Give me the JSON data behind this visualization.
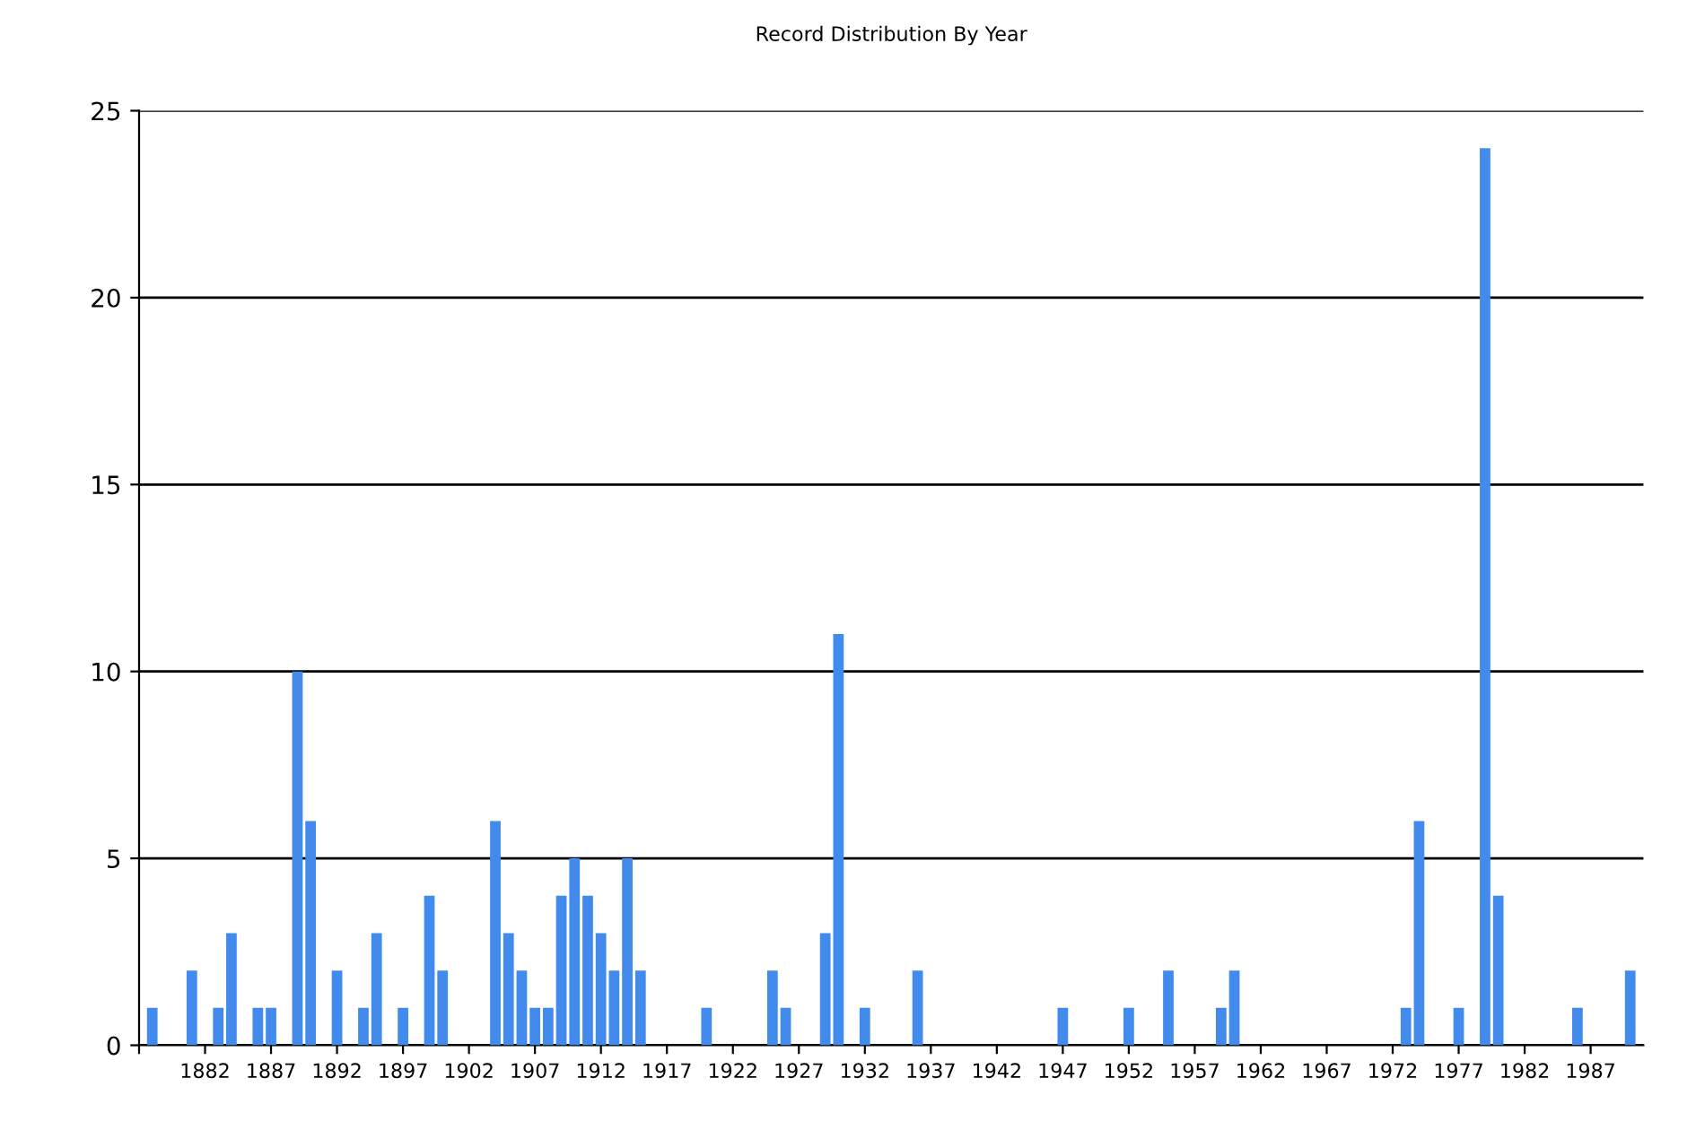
{
  "chart_data": {
    "type": "bar",
    "title": "Record Distribution By Year",
    "x": [
      1878,
      1881,
      1883,
      1884,
      1886,
      1887,
      1889,
      1890,
      1892,
      1894,
      1895,
      1897,
      1899,
      1900,
      1904,
      1905,
      1906,
      1907,
      1908,
      1909,
      1910,
      1911,
      1912,
      1913,
      1914,
      1915,
      1920,
      1925,
      1926,
      1929,
      1930,
      1932,
      1936,
      1947,
      1952,
      1955,
      1959,
      1960,
      1973,
      1974,
      1977,
      1979,
      1980,
      1986,
      1990
    ],
    "values": [
      1,
      2,
      1,
      3,
      1,
      1,
      10,
      6,
      2,
      1,
      3,
      1,
      4,
      2,
      6,
      3,
      2,
      1,
      1,
      4,
      5,
      4,
      3,
      2,
      5,
      2,
      1,
      2,
      1,
      3,
      11,
      1,
      2,
      1,
      1,
      2,
      1,
      2,
      1,
      6,
      1,
      24,
      4,
      1,
      2
    ],
    "color": "#428bec",
    "xlim": [
      1877,
      1991
    ],
    "xticks": [
      {
        "value": 1877,
        "label": null
      },
      1882,
      1887,
      1892,
      1897,
      1902,
      1907,
      1912,
      1917,
      1922,
      1927,
      1932,
      1937,
      1942,
      1947,
      1952,
      1957,
      1962,
      1967,
      1972,
      1977,
      1982,
      1987
    ],
    "ylim": [
      0,
      25
    ],
    "yticks": [
      0,
      5,
      10,
      15,
      20,
      25
    ],
    "grid": "y",
    "legend": false
  }
}
